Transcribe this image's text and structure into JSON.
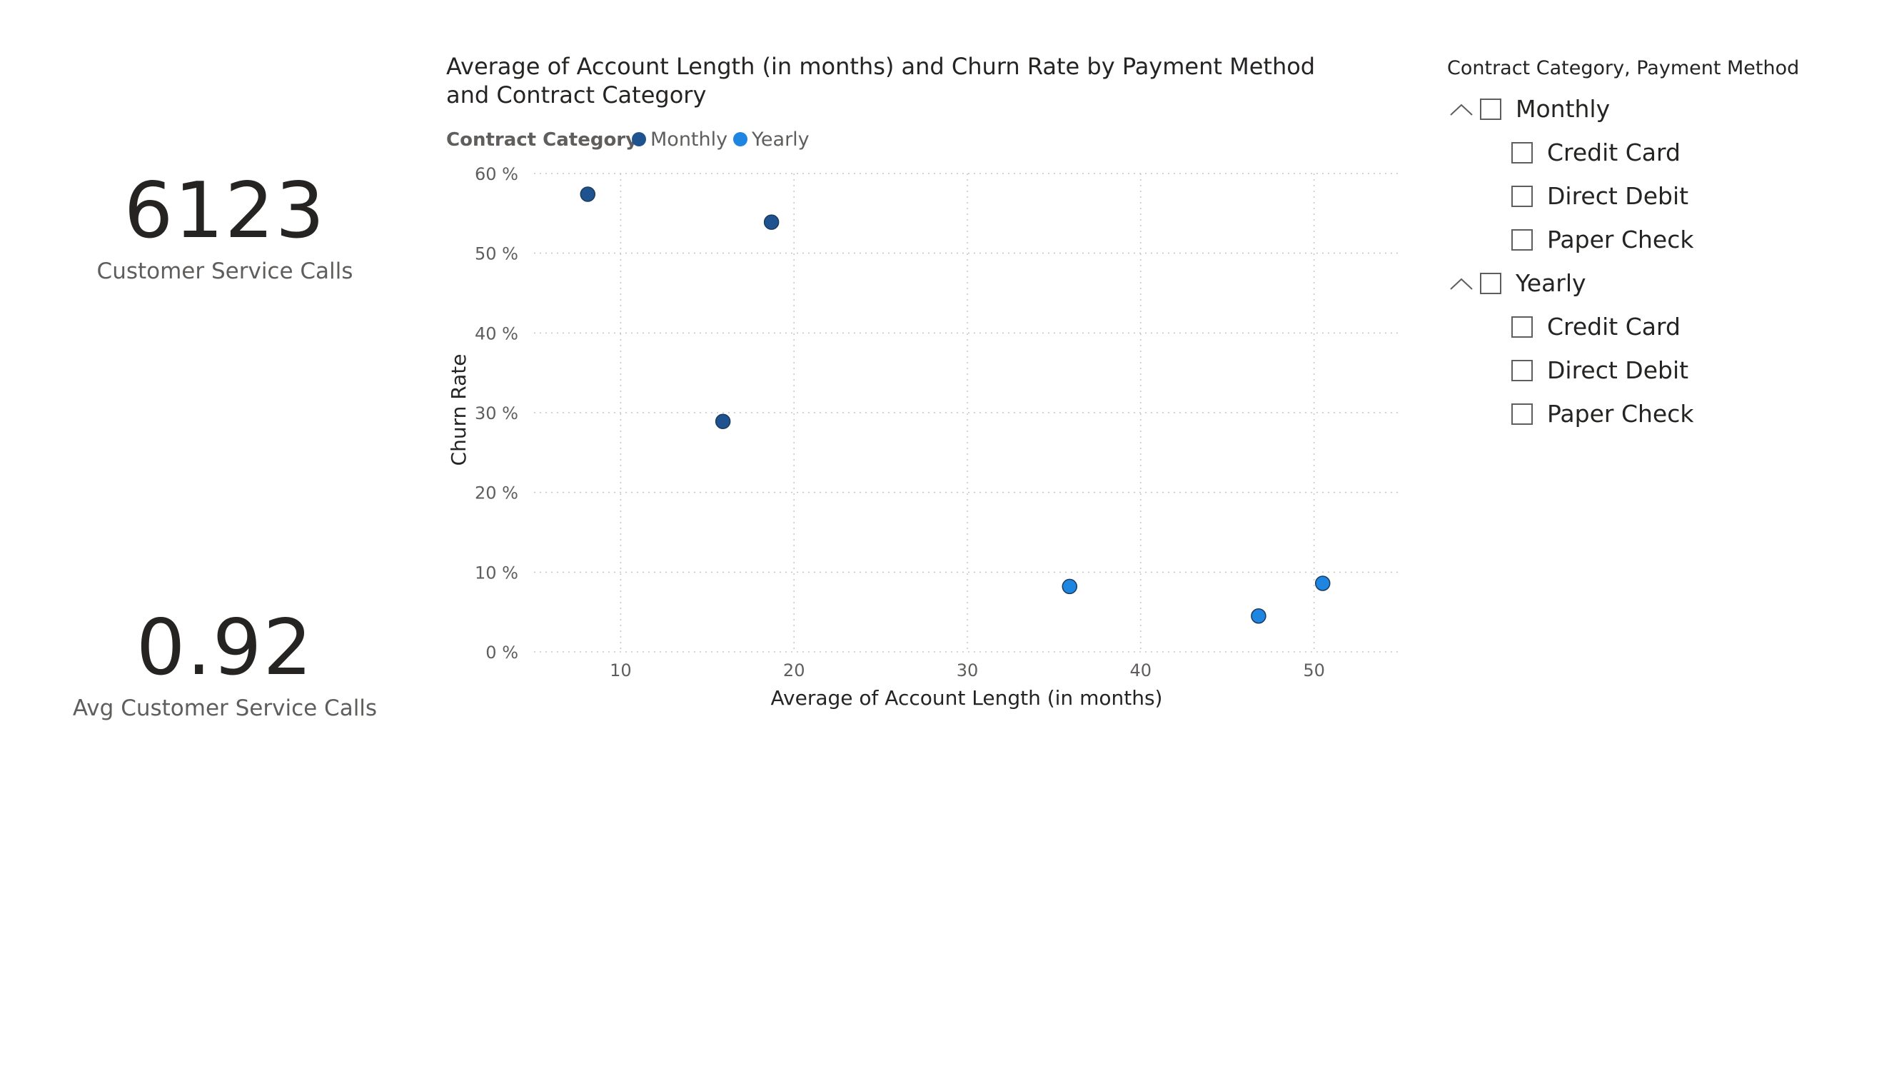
{
  "cards": {
    "customer_service_calls": {
      "value": "6123",
      "label": "Customer Service Calls"
    },
    "avg_customer_service_calls": {
      "value": "0.92",
      "label": "Avg Customer Service Calls"
    }
  },
  "slicer": {
    "title": "Contract Category, Payment Method",
    "groups": [
      {
        "label": "Monthly",
        "expanded": true,
        "checked": false,
        "items": [
          {
            "label": "Credit Card",
            "checked": false
          },
          {
            "label": "Direct Debit",
            "checked": false
          },
          {
            "label": "Paper Check",
            "checked": false
          }
        ]
      },
      {
        "label": "Yearly",
        "expanded": true,
        "checked": false,
        "items": [
          {
            "label": "Credit Card",
            "checked": false
          },
          {
            "label": "Direct Debit",
            "checked": false
          },
          {
            "label": "Paper Check",
            "checked": false
          }
        ]
      }
    ]
  },
  "chart_data": {
    "type": "scatter",
    "title": "Average of Account Length (in months) and Churn Rate by Payment Method and Contract Category",
    "legend_title": "Contract Category",
    "legend_position": "top-left",
    "xlabel": "Average of Account Length (in months)",
    "ylabel": "Churn Rate",
    "xlim": [
      5,
      55
    ],
    "ylim": [
      0,
      60
    ],
    "x_ticks": [
      10,
      20,
      30,
      40,
      50
    ],
    "y_ticks": [
      0,
      10,
      20,
      30,
      40,
      50,
      60
    ],
    "y_tick_labels": [
      "0 %",
      "10 %",
      "20 %",
      "30 %",
      "40 %",
      "50 %",
      "60 %"
    ],
    "grid": true,
    "series": [
      {
        "name": "Monthly",
        "color": "#1f5390",
        "points": [
          {
            "x": 8.1,
            "y": 57.4
          },
          {
            "x": 18.7,
            "y": 53.9
          },
          {
            "x": 15.9,
            "y": 28.9
          }
        ]
      },
      {
        "name": "Yearly",
        "color": "#1e85e0",
        "points": [
          {
            "x": 35.9,
            "y": 8.2
          },
          {
            "x": 50.5,
            "y": 8.6
          },
          {
            "x": 46.8,
            "y": 4.5
          }
        ]
      }
    ]
  }
}
